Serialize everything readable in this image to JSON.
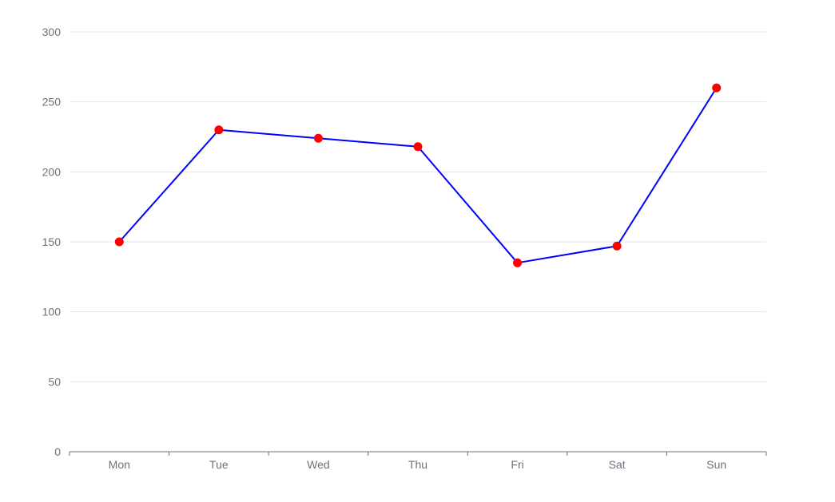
{
  "chart_data": {
    "type": "line",
    "categories": [
      "Mon",
      "Tue",
      "Wed",
      "Thu",
      "Fri",
      "Sat",
      "Sun"
    ],
    "series": [
      {
        "values": [
          150,
          230,
          224,
          218,
          135,
          147,
          260
        ]
      }
    ],
    "ylim": [
      0,
      300
    ],
    "yticks": [
      0,
      50,
      100,
      150,
      200,
      250,
      300
    ],
    "grid": true,
    "colors": {
      "line": "#0000ff",
      "marker": "#ff0000",
      "grid": "#e0e6f1",
      "axis": "#6e7079",
      "tick_label": "#6e7079"
    }
  }
}
